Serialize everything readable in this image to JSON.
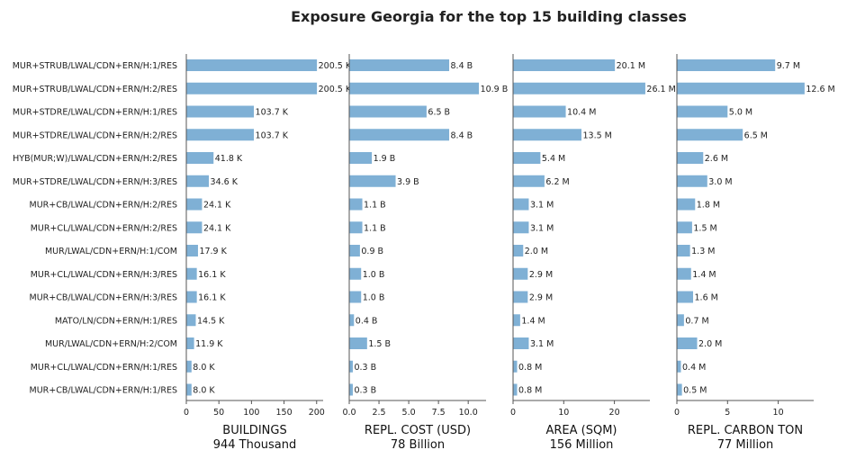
{
  "chart_data": {
    "type": "bar",
    "orientation": "horizontal",
    "title": "Exposure Georgia for the top 15 building classes",
    "bar_color": "#7fb0d5",
    "categories": [
      "MUR+STRUB/LWAL/CDN+ERN/H:1/RES",
      "MUR+STRUB/LWAL/CDN+ERN/H:2/RES",
      "MUR+STDRE/LWAL/CDN+ERN/H:1/RES",
      "MUR+STDRE/LWAL/CDN+ERN/H:2/RES",
      "HYB(MUR;W)/LWAL/CDN+ERN/H:2/RES",
      "MUR+STDRE/LWAL/CDN+ERN/H:3/RES",
      "MUR+CB/LWAL/CDN+ERN/H:2/RES",
      "MUR+CL/LWAL/CDN+ERN/H:2/RES",
      "MUR/LWAL/CDN+ERN/H:1/COM",
      "MUR+CL/LWAL/CDN+ERN/H:3/RES",
      "MUR+CB/LWAL/CDN+ERN/H:3/RES",
      "MATO/LN/CDN+ERN/H:1/RES",
      "MUR/LWAL/CDN+ERN/H:2/COM",
      "MUR+CL/LWAL/CDN+ERN/H:1/RES",
      "MUR+CB/LWAL/CDN+ERN/H:1/RES"
    ],
    "panels": [
      {
        "xlabel": "BUILDINGS",
        "total": "944 Thousand",
        "xlim": [
          0,
          210
        ],
        "ticks": [
          0,
          50,
          100,
          150,
          200
        ],
        "tick_labels": [
          "0",
          "50",
          "100",
          "150",
          "200"
        ],
        "values": [
          200.5,
          200.5,
          103.7,
          103.7,
          41.8,
          34.6,
          24.1,
          24.1,
          17.9,
          16.1,
          16.1,
          14.5,
          11.9,
          8.0,
          8.0
        ],
        "value_labels": [
          "200.5 K",
          "200.5 K",
          "103.7 K",
          "103.7 K",
          "41.8 K",
          "34.6 K",
          "24.1 K",
          "24.1 K",
          "17.9 K",
          "16.1 K",
          "16.1 K",
          "14.5 K",
          "11.9 K",
          "8.0 K",
          "8.0 K"
        ]
      },
      {
        "xlabel": "REPL. COST (USD)",
        "total": "78 Billion",
        "xlim": [
          0,
          11.5
        ],
        "ticks": [
          0,
          2.5,
          5,
          7.5,
          10
        ],
        "tick_labels": [
          "0.0",
          "2.5",
          "5.0",
          "7.5",
          "10.0"
        ],
        "values": [
          8.4,
          10.9,
          6.5,
          8.4,
          1.9,
          3.9,
          1.1,
          1.1,
          0.9,
          1.0,
          1.0,
          0.4,
          1.5,
          0.3,
          0.3
        ],
        "value_labels": [
          "8.4 B",
          "10.9 B",
          "6.5 B",
          "8.4 B",
          "1.9 B",
          "3.9 B",
          "1.1 B",
          "1.1 B",
          "0.9 B",
          "1.0 B",
          "1.0 B",
          "0.4 B",
          "1.5 B",
          "0.3 B",
          "0.3 B"
        ]
      },
      {
        "xlabel": "AREA (SQM)",
        "total": "156 Million",
        "xlim": [
          0,
          27
        ],
        "ticks": [
          0,
          10,
          20
        ],
        "tick_labels": [
          "0",
          "10",
          "20"
        ],
        "values": [
          20.1,
          26.1,
          10.4,
          13.5,
          5.4,
          6.2,
          3.1,
          3.1,
          2.0,
          2.9,
          2.9,
          1.4,
          3.1,
          0.8,
          0.8
        ],
        "value_labels": [
          "20.1 M",
          "26.1 M",
          "10.4 M",
          "13.5 M",
          "5.4 M",
          "6.2 M",
          "3.1 M",
          "3.1 M",
          "2.0 M",
          "2.9 M",
          "2.9 M",
          "1.4 M",
          "3.1 M",
          "0.8 M",
          "0.8 M"
        ]
      },
      {
        "xlabel": "REPL. CARBON TON",
        "total": "77 Million",
        "xlim": [
          0,
          13.5
        ],
        "ticks": [
          0,
          5,
          10
        ],
        "tick_labels": [
          "0",
          "5",
          "10"
        ],
        "values": [
          9.7,
          12.6,
          5.0,
          6.5,
          2.6,
          3.0,
          1.8,
          1.5,
          1.3,
          1.4,
          1.6,
          0.7,
          2.0,
          0.4,
          0.5
        ],
        "value_labels": [
          "9.7 M",
          "12.6 M",
          "5.0 M",
          "6.5 M",
          "2.6 M",
          "3.0 M",
          "1.8 M",
          "1.5 M",
          "1.3 M",
          "1.4 M",
          "1.6 M",
          "0.7 M",
          "2.0 M",
          "0.4 M",
          "0.5 M"
        ]
      }
    ]
  }
}
